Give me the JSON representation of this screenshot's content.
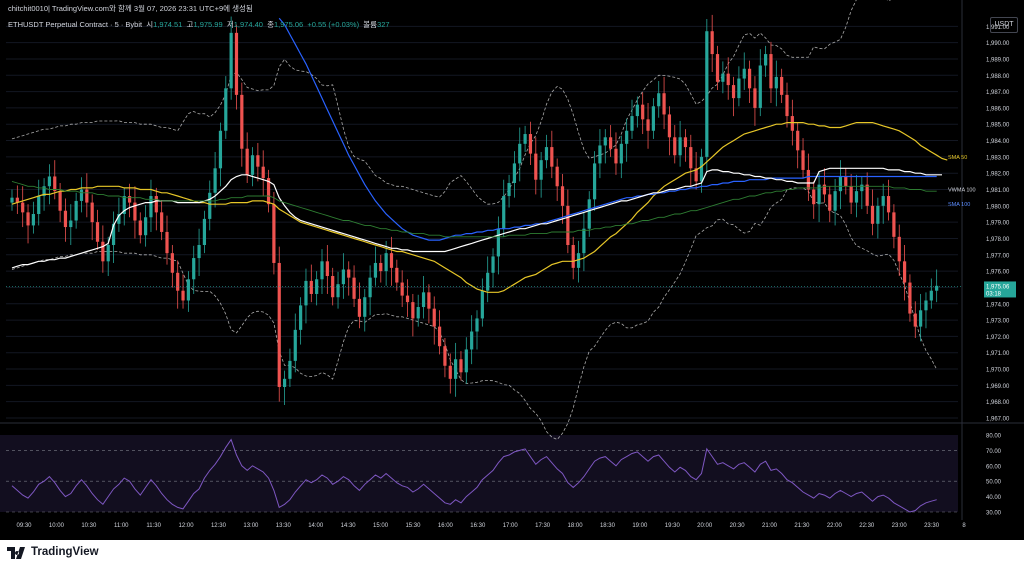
{
  "header": {
    "author_line": "chitchit0010| TradingView.com와 함께 3월 07, 2026 23:31 UTC+9에 생성됨",
    "symbol": "ETHUSDT Perpetual Contract · 5 · Bybit",
    "o_label": "시",
    "o_value": "1,974.51",
    "h_label": "고",
    "h_value": "1,975.99",
    "l_label": "저",
    "l_value": "1,974.40",
    "c_label": "종",
    "c_value": "1,975.06",
    "change": "+0.55 (+0.03%)",
    "vol_label": "볼륨",
    "vol_value": "327"
  },
  "currency_button": "USDT",
  "last_price": {
    "value": "1,975.06",
    "countdown": "03:18"
  },
  "colors": {
    "up": "#26a69a",
    "down": "#ef5350",
    "sma50": "#e6c628",
    "sma100": "#2962ff",
    "vwma": "#ffffff",
    "green_ma": "#2e7d32",
    "bands": "#c8c8c8",
    "rsi": "#7e57c2",
    "bg": "#000000"
  },
  "footer": {
    "brand": "TradingView",
    "brand_icon": "tradingview-logo-icon"
  },
  "chart_data": {
    "type": "candlestick",
    "symbol": "ETHUSDT Perpetual Contract",
    "interval": "5",
    "exchange": "Bybit",
    "y_range": [
      1967,
      1992
    ],
    "y_ticks": [
      "1,991.00",
      "1,990.00",
      "1,989.00",
      "1,988.00",
      "1,987.00",
      "1,986.00",
      "1,985.00",
      "1,984.00",
      "1,983.00",
      "1,982.00",
      "1,981.00",
      "1,980.00",
      "1,979.00",
      "1,978.00",
      "1,977.00",
      "1,976.00",
      "1,975.00",
      "1,974.00",
      "1,973.00",
      "1,972.00",
      "1,971.00",
      "1,970.00",
      "1,969.00",
      "1,968.00",
      "1,967.00"
    ],
    "x_ticks": [
      "09:30",
      "10:00",
      "10:30",
      "11:00",
      "11:30",
      "12:00",
      "12:30",
      "13:00",
      "13:30",
      "14:00",
      "14:30",
      "15:00",
      "15:30",
      "16:00",
      "16:30",
      "17:00",
      "17:30",
      "18:00",
      "18:30",
      "19:00",
      "19:30",
      "20:00",
      "20:30",
      "21:00",
      "21:30",
      "22:00",
      "22:30",
      "23:00",
      "23:30",
      "8"
    ],
    "closes": [
      1980.5,
      1980.2,
      1979.6,
      1978.8,
      1979.5,
      1980.6,
      1981.2,
      1981.8,
      1980.9,
      1979.7,
      1978.7,
      1979.1,
      1980.3,
      1981.0,
      1980.2,
      1979.0,
      1977.8,
      1976.6,
      1977.6,
      1978.9,
      1979.5,
      1980.6,
      1980.2,
      1979.1,
      1978.2,
      1979.3,
      1980.6,
      1979.6,
      1978.4,
      1977.1,
      1975.9,
      1974.8,
      1974.2,
      1975.5,
      1976.8,
      1977.6,
      1979.2,
      1980.8,
      1982.3,
      1984.6,
      1987.2,
      1990.6,
      1986.8,
      1983.5,
      1981.9,
      1983.1,
      1982.4,
      1981.7,
      1980.1,
      1976.5,
      1968.9,
      1969.4,
      1970.5,
      1972.4,
      1973.9,
      1975.4,
      1974.6,
      1975.5,
      1976.6,
      1975.7,
      1974.4,
      1975.2,
      1976.1,
      1975.6,
      1974.3,
      1973.2,
      1974.4,
      1975.6,
      1976.5,
      1976.0,
      1977.1,
      1976.2,
      1975.3,
      1974.5,
      1974.1,
      1973.1,
      1973.8,
      1974.7,
      1973.7,
      1972.6,
      1971.4,
      1970.2,
      1969.4,
      1970.6,
      1969.8,
      1971.2,
      1972.3,
      1973.1,
      1974.8,
      1975.9,
      1976.9,
      1978.6,
      1980.6,
      1981.4,
      1982.6,
      1983.8,
      1984.4,
      1983.2,
      1981.6,
      1982.8,
      1983.6,
      1982.4,
      1981.2,
      1980.0,
      1977.6,
      1976.2,
      1977.1,
      1978.6,
      1980.4,
      1982.6,
      1983.7,
      1984.2,
      1983.5,
      1982.6,
      1983.8,
      1984.6,
      1985.5,
      1986.2,
      1985.3,
      1984.6,
      1986.1,
      1986.9,
      1985.6,
      1984.2,
      1983.1,
      1984.2,
      1983.6,
      1982.3,
      1981.5,
      1983.0,
      1990.7,
      1989.3,
      1987.6,
      1988.1,
      1987.4,
      1986.6,
      1987.8,
      1988.4,
      1987.2,
      1986.0,
      1988.6,
      1989.3,
      1987.2,
      1987.9,
      1986.8,
      1985.5,
      1984.6,
      1983.4,
      1982.2,
      1981.0,
      1980.1,
      1981.3,
      1980.7,
      1979.7,
      1980.9,
      1981.8,
      1981.2,
      1980.2,
      1980.9,
      1981.3,
      1980.0,
      1978.9,
      1980.0,
      1980.6,
      1979.6,
      1978.1,
      1976.6,
      1975.3,
      1973.4,
      1972.6,
      1973.6,
      1974.2,
      1974.8,
      1975.1
    ],
    "series": [
      {
        "name": "SMA 50",
        "values": [
          1980.1,
          1980.2,
          1980.3,
          1980.4,
          1980.5,
          1980.6,
          1980.7,
          1980.7,
          1980.8,
          1980.9,
          1980.9,
          1981.0,
          1981.0,
          1981.1,
          1981.1,
          1981.1,
          1981.2,
          1981.2,
          1981.2,
          1981.2,
          1981.2,
          1981.1,
          1981.1,
          1981.1,
          1981.0,
          1981.0,
          1981.0,
          1980.9,
          1980.8,
          1980.8,
          1980.7,
          1980.6,
          1980.5,
          1980.4,
          1980.3,
          1980.2,
          1980.2,
          1980.1,
          1980.1,
          1980.1,
          1980.1,
          1980.2,
          1980.2,
          1980.2,
          1980.2,
          1980.3,
          1980.3,
          1980.3,
          1980.2,
          1980.1,
          1979.8,
          1979.6,
          1979.4,
          1979.2,
          1979.0,
          1978.9,
          1978.8,
          1978.7,
          1978.6,
          1978.5,
          1978.4,
          1978.3,
          1978.2,
          1978.1,
          1978.0,
          1977.9,
          1977.8,
          1977.7,
          1977.6,
          1977.5,
          1977.4,
          1977.3,
          1977.2,
          1977.2,
          1977.1,
          1977.0,
          1976.9,
          1976.8,
          1976.7,
          1976.6,
          1976.4,
          1976.2,
          1976.0,
          1975.8,
          1975.6,
          1975.3,
          1975.1,
          1974.9,
          1974.8,
          1974.7,
          1974.7,
          1974.7,
          1974.8,
          1975.0,
          1975.2,
          1975.4,
          1975.6,
          1975.7,
          1975.8,
          1976.0,
          1976.2,
          1976.4,
          1976.5,
          1976.6,
          1976.6,
          1976.6,
          1976.7,
          1976.8,
          1977.0,
          1977.2,
          1977.5,
          1977.8,
          1978.1,
          1978.3,
          1978.6,
          1978.9,
          1979.2,
          1979.6,
          1979.9,
          1980.2,
          1980.6,
          1980.9,
          1981.2,
          1981.4,
          1981.6,
          1981.8,
          1982.0,
          1982.1,
          1982.2,
          1982.4,
          1982.7,
          1983.0,
          1983.3,
          1983.6,
          1983.8,
          1984.0,
          1984.2,
          1984.4,
          1984.5,
          1984.6,
          1984.7,
          1984.8,
          1984.9,
          1985.0,
          1985.0,
          1985.1,
          1985.1,
          1985.1,
          1985.1,
          1985.0,
          1985.0,
          1984.9,
          1984.9,
          1984.8,
          1984.8,
          1984.8,
          1984.9,
          1985.0,
          1985.1,
          1985.1,
          1985.1,
          1985.1,
          1985.0,
          1984.9,
          1984.8,
          1984.7,
          1984.6,
          1984.4,
          1984.2,
          1984.0,
          1983.7,
          1983.5,
          1983.3,
          1983.1,
          1982.9,
          1982.8
        ]
      },
      {
        "name": "SMA 100",
        "values": [
          null,
          null,
          null,
          null,
          null,
          null,
          null,
          null,
          null,
          null,
          null,
          null,
          null,
          null,
          null,
          null,
          null,
          null,
          null,
          null,
          null,
          null,
          null,
          null,
          null,
          null,
          null,
          null,
          null,
          null,
          null,
          null,
          null,
          null,
          null,
          null,
          null,
          null,
          null,
          null,
          null,
          null,
          null,
          null,
          null,
          null,
          null,
          null,
          null,
          null,
          1991.5,
          1991.1,
          1990.5,
          1989.9,
          1989.3,
          1988.7,
          1988.0,
          1987.3,
          1986.6,
          1985.9,
          1985.2,
          1984.5,
          1983.8,
          1983.1,
          1982.5,
          1981.9,
          1981.3,
          1980.8,
          1980.3,
          1979.9,
          1979.5,
          1979.2,
          1978.9,
          1978.6,
          1978.4,
          1978.2,
          1978.1,
          1978.0,
          1977.9,
          1977.9,
          1977.9,
          1978.0,
          1978.1,
          1978.2,
          1978.2,
          1978.3,
          1978.3,
          1978.4,
          1978.4,
          1978.5,
          1978.5,
          1978.6,
          1978.6,
          1978.6,
          1978.7,
          1978.7,
          1978.8,
          1978.8,
          1978.9,
          1978.9,
          1979.0,
          1979.1,
          1979.2,
          1979.3,
          1979.4,
          1979.5,
          1979.6,
          1979.7,
          1979.8,
          1979.9,
          1980.0,
          1980.1,
          1980.2,
          1980.3,
          1980.4,
          1980.5,
          1980.5,
          1980.6,
          1980.6,
          1980.7,
          1980.7,
          1980.8,
          1980.8,
          1980.9,
          1980.9,
          1981.0,
          1981.0,
          1981.1,
          1981.1,
          1981.2,
          1981.2,
          1981.3,
          1981.3,
          1981.4,
          1981.4,
          1981.5,
          1981.5,
          1981.5,
          1981.6,
          1981.6,
          1981.6,
          1981.6,
          1981.7,
          1981.7,
          1981.7,
          1981.7,
          1981.7,
          1981.7,
          1981.7,
          1981.8,
          1981.8,
          1981.8,
          1981.8,
          1981.8,
          1981.8,
          1981.8,
          1981.8,
          1981.8,
          1981.8,
          1981.8,
          1981.8,
          1981.8,
          1981.8,
          1981.8,
          1981.8,
          1981.8,
          1981.8,
          1981.8,
          1981.8,
          1981.8,
          1981.8,
          1981.8,
          1981.8,
          1981.8
        ]
      },
      {
        "name": "VWMA 100",
        "values": [
          1976.2,
          1976.3,
          1976.4,
          1976.4,
          1976.5,
          1976.6,
          1976.6,
          1976.7,
          1976.7,
          1976.8,
          1976.8,
          1976.9,
          1977.0,
          1977.1,
          1977.2,
          1977.3,
          1977.4,
          1977.5,
          1977.7,
          1978.8,
          1979.4,
          1979.7,
          1979.9,
          1980.0,
          1980.1,
          1980.2,
          1980.2,
          1980.3,
          1980.3,
          1980.3,
          1980.3,
          1980.2,
          1980.2,
          1980.2,
          1980.2,
          1980.2,
          1980.3,
          1980.4,
          1980.6,
          1980.9,
          1981.2,
          1981.6,
          1981.8,
          1981.9,
          1981.9,
          1981.8,
          1981.7,
          1981.6,
          1981.5,
          1981.3,
          1980.5,
          1980.0,
          1979.6,
          1979.3,
          1979.1,
          1979.0,
          1978.9,
          1978.8,
          1978.7,
          1978.6,
          1978.5,
          1978.4,
          1978.3,
          1978.2,
          1978.1,
          1978.0,
          1977.9,
          1977.8,
          1977.7,
          1977.6,
          1977.5,
          1977.4,
          1977.4,
          1977.3,
          1977.3,
          1977.2,
          1977.2,
          1977.2,
          1977.2,
          1977.2,
          1977.2,
          1977.2,
          1977.3,
          1977.4,
          1977.5,
          1977.6,
          1977.7,
          1977.8,
          1977.9,
          1978.0,
          1978.1,
          1978.2,
          1978.3,
          1978.4,
          1978.5,
          1978.6,
          1978.6,
          1978.7,
          1978.8,
          1978.9,
          1978.9,
          1979.0,
          1979.1,
          1979.2,
          1979.3,
          1979.4,
          1979.5,
          1979.6,
          1979.7,
          1979.8,
          1979.9,
          1980.0,
          1980.1,
          1980.2,
          1980.3,
          1980.3,
          1980.4,
          1980.5,
          1980.6,
          1980.7,
          1980.8,
          1980.8,
          1980.9,
          1981.0,
          1981.0,
          1981.1,
          1981.2,
          1981.2,
          1981.3,
          1981.4,
          1982.1,
          1982.2,
          1982.2,
          1982.1,
          1982.1,
          1982.0,
          1982.0,
          1981.9,
          1981.9,
          1981.8,
          1981.8,
          1981.7,
          1981.7,
          1981.6,
          1981.6,
          1981.5,
          1981.5,
          1981.4,
          1981.4,
          1981.4,
          1981.4,
          1982.1,
          1982.2,
          1982.3,
          1982.3,
          1982.3,
          1982.3,
          1982.3,
          1982.3,
          1982.3,
          1982.3,
          1982.3,
          1982.3,
          1982.3,
          1982.2,
          1982.2,
          1982.2,
          1982.1,
          1982.1,
          1982.0,
          1982.0,
          1981.9,
          1981.9,
          1981.9,
          1981.9
        ]
      },
      {
        "name": "",
        "values": [
          1981.5,
          1981.4,
          1981.3,
          1981.2,
          1981.2,
          1981.1,
          1981.1,
          1981.0,
          1981.0,
          1981.0,
          1980.9,
          1980.9,
          1980.9,
          1980.8,
          1980.8,
          1980.8,
          1980.7,
          1980.7,
          1980.6,
          1980.6,
          1980.6,
          1980.5,
          1980.5,
          1980.5,
          1980.5,
          1980.4,
          1980.4,
          1980.4,
          1980.3,
          1980.3,
          1980.3,
          1980.3,
          1980.3,
          1980.3,
          1980.3,
          1980.3,
          1980.3,
          1980.3,
          1980.3,
          1980.4,
          1980.4,
          1980.5,
          1980.5,
          1980.5,
          1980.6,
          1980.6,
          1980.6,
          1980.6,
          1980.6,
          1980.5,
          1980.3,
          1980.2,
          1980.1,
          1980.0,
          1979.9,
          1979.8,
          1979.7,
          1979.6,
          1979.5,
          1979.4,
          1979.3,
          1979.2,
          1979.1,
          1979.1,
          1979.0,
          1978.9,
          1978.8,
          1978.8,
          1978.7,
          1978.6,
          1978.6,
          1978.5,
          1978.5,
          1978.4,
          1978.4,
          1978.3,
          1978.3,
          1978.3,
          1978.2,
          1978.2,
          1978.2,
          1978.1,
          1978.1,
          1978.1,
          1978.1,
          1978.1,
          1978.1,
          1978.1,
          1978.1,
          1978.1,
          1978.1,
          1978.1,
          1978.1,
          1978.2,
          1978.2,
          1978.2,
          1978.2,
          1978.3,
          1978.3,
          1978.3,
          1978.3,
          1978.4,
          1978.4,
          1978.4,
          1978.4,
          1978.4,
          1978.5,
          1978.5,
          1978.5,
          1978.6,
          1978.6,
          1978.7,
          1978.7,
          1978.8,
          1978.8,
          1978.9,
          1978.9,
          1979.0,
          1979.1,
          1979.1,
          1979.2,
          1979.3,
          1979.3,
          1979.4,
          1979.5,
          1979.5,
          1979.6,
          1979.7,
          1979.7,
          1979.8,
          1979.9,
          1980.0,
          1980.1,
          1980.2,
          1980.3,
          1980.4,
          1980.4,
          1980.5,
          1980.6,
          1980.6,
          1980.7,
          1980.8,
          1980.8,
          1980.9,
          1980.9,
          1981.0,
          1981.0,
          1981.1,
          1981.1,
          1981.1,
          1981.1,
          1981.1,
          1981.2,
          1981.2,
          1981.2,
          1981.2,
          1981.2,
          1981.2,
          1981.2,
          1981.2,
          1981.2,
          1981.2,
          1981.2,
          1981.2,
          1981.2,
          1981.1,
          1981.1,
          1981.1,
          1981.0,
          1981.0,
          1981.0,
          1980.9,
          1980.9,
          1980.9
        ]
      }
    ],
    "series_labels": [
      {
        "text": "SMA 50",
        "price": 1983.0,
        "color": "#e6c628"
      },
      {
        "text": "VWMA 100",
        "price": 1981.0,
        "color": "#d1d4dc"
      },
      {
        "text": "SMA 100",
        "price": 1980.1,
        "color": "#5b8cff"
      }
    ],
    "rsi": {
      "y_range": [
        30,
        80
      ],
      "y_ticks": [
        "80.00",
        "70.00",
        "60.00",
        "50.00",
        "40.00",
        "30.00"
      ],
      "levels": [
        70,
        50,
        30
      ],
      "values": [
        47,
        44,
        41,
        39,
        43,
        48,
        50,
        53,
        49,
        44,
        40,
        42,
        47,
        51,
        47,
        42,
        38,
        35,
        40,
        45,
        48,
        52,
        50,
        45,
        41,
        46,
        51,
        47,
        42,
        38,
        35,
        33,
        32,
        37,
        42,
        45,
        52,
        57,
        61,
        66,
        72,
        77,
        67,
        60,
        57,
        60,
        58,
        56,
        52,
        44,
        33,
        35,
        38,
        43,
        47,
        51,
        49,
        51,
        54,
        52,
        48,
        50,
        53,
        51,
        47,
        44,
        48,
        51,
        54,
        52,
        55,
        52,
        49,
        47,
        46,
        43,
        45,
        48,
        45,
        42,
        39,
        36,
        35,
        38,
        36,
        40,
        43,
        46,
        51,
        54,
        57,
        62,
        66,
        67,
        69,
        70,
        71,
        66,
        61,
        64,
        66,
        62,
        58,
        55,
        49,
        46,
        49,
        53,
        58,
        63,
        65,
        66,
        63,
        60,
        64,
        66,
        68,
        69,
        66,
        63,
        66,
        67,
        63,
        59,
        56,
        59,
        57,
        53,
        51,
        55,
        71,
        66,
        61,
        62,
        60,
        58,
        61,
        62,
        59,
        56,
        61,
        63,
        57,
        58,
        55,
        51,
        49,
        46,
        43,
        41,
        39,
        42,
        41,
        39,
        42,
        44,
        42,
        40,
        42,
        43,
        40,
        37,
        40,
        41,
        39,
        36,
        34,
        32,
        30,
        31,
        34,
        36,
        37,
        38
      ]
    }
  }
}
